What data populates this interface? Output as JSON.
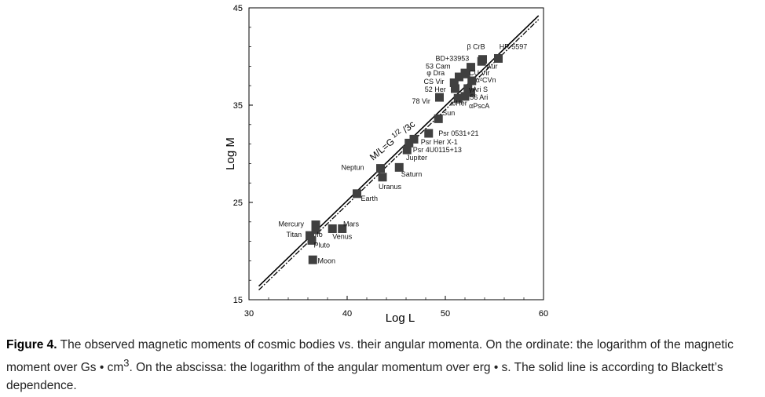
{
  "chart_data": {
    "type": "scatter",
    "xlabel": "Log L",
    "ylabel": "Log M",
    "xlim": [
      30,
      60
    ],
    "ylim": [
      15,
      45
    ],
    "x_ticks": [
      "30",
      "40",
      "50",
      "60"
    ],
    "y_ticks": [
      "15",
      "25",
      "35",
      "45"
    ],
    "grid": false,
    "line_label": "M/L=G^{1/2}/3c",
    "line_label_parts": {
      "base": "M/L=G",
      "sup": "1/2",
      "tail": " /3c"
    },
    "lines": [
      {
        "style": "solid",
        "x": [
          31,
          59.5
        ],
        "y": [
          16.4,
          44.2
        ]
      },
      {
        "style": "dashdot",
        "x": [
          31,
          59.5
        ],
        "y": [
          16.0,
          43.8
        ]
      }
    ],
    "points": [
      {
        "name": "Moon",
        "x": 36.5,
        "y": 19.1
      },
      {
        "name": "Pluto",
        "x": 36.4,
        "y": 21.1
      },
      {
        "name": "Titan",
        "x": 36.2,
        "y": 21.6
      },
      {
        "name": "Io",
        "x": 36.8,
        "y": 22.2
      },
      {
        "name": "Mercury",
        "x": 36.8,
        "y": 22.7
      },
      {
        "name": "Venus",
        "x": 38.5,
        "y": 22.3
      },
      {
        "name": "Mars",
        "x": 39.5,
        "y": 22.3
      },
      {
        "name": "Earth",
        "x": 41.0,
        "y": 25.9
      },
      {
        "name": "Uranus",
        "x": 43.6,
        "y": 27.6
      },
      {
        "name": "Neptun",
        "x": 43.4,
        "y": 28.5
      },
      {
        "name": "Saturn",
        "x": 45.3,
        "y": 28.6
      },
      {
        "name": "Jupiter",
        "x": 46.1,
        "y": 30.4
      },
      {
        "name": "Psr 4U0115+13",
        "x": 46.3,
        "y": 31.1
      },
      {
        "name": "Psr Her X-1",
        "x": 46.8,
        "y": 31.5
      },
      {
        "name": "Psr 0531+21",
        "x": 48.3,
        "y": 32.1
      },
      {
        "name": "Sun",
        "x": 49.3,
        "y": 33.6
      },
      {
        "name": "78 Vir",
        "x": 49.4,
        "y": 35.8
      },
      {
        "name": "ωHer",
        "x": 51.3,
        "y": 35.7
      },
      {
        "name": "αPscA",
        "x": 52.0,
        "y": 35.9
      },
      {
        "name": "56 Ari",
        "x": 52.6,
        "y": 36.3
      },
      {
        "name": "γAri S",
        "x": 52.3,
        "y": 36.7
      },
      {
        "name": "52 Her",
        "x": 51.0,
        "y": 36.7
      },
      {
        "name": "CS Vir",
        "x": 50.9,
        "y": 37.3
      },
      {
        "name": "α²CVn",
        "x": 52.7,
        "y": 37.5
      },
      {
        "name": "CU Vir",
        "x": 52.1,
        "y": 38.2
      },
      {
        "name": "φ Dra",
        "x": 51.4,
        "y": 37.9
      },
      {
        "name": "53 Cam",
        "x": 52.0,
        "y": 38.3
      },
      {
        "name": "53 Aur",
        "x": 52.6,
        "y": 38.9
      },
      {
        "name": "BD+33953",
        "x": 53.7,
        "y": 39.5
      },
      {
        "name": "β CrB",
        "x": 53.8,
        "y": 39.7
      },
      {
        "name": "HR 5597",
        "x": 55.4,
        "y": 39.8
      }
    ]
  },
  "labels": [
    {
      "text": "Moon",
      "x": 37.0,
      "y": 19.0
    },
    {
      "text": "Pluto",
      "x": 36.6,
      "y": 20.6
    },
    {
      "text": "Titan",
      "x": 33.8,
      "y": 21.7
    },
    {
      "text": "Io",
      "x": 36.9,
      "y": 21.7
    },
    {
      "text": "Mercury",
      "x": 33.0,
      "y": 22.8
    },
    {
      "text": "Venus",
      "x": 38.5,
      "y": 21.5
    },
    {
      "text": "Mars",
      "x": 39.6,
      "y": 22.8
    },
    {
      "text": "Earth",
      "x": 41.4,
      "y": 25.4
    },
    {
      "text": "Uranus",
      "x": 43.2,
      "y": 26.6
    },
    {
      "text": "Neptun",
      "x": 39.4,
      "y": 28.6
    },
    {
      "text": "Saturn",
      "x": 45.5,
      "y": 27.9
    },
    {
      "text": "Jupiter",
      "x": 46.0,
      "y": 29.6
    },
    {
      "text": "Psr 4U0115+13",
      "x": 46.7,
      "y": 30.4
    },
    {
      "text": "Psr Her X-1",
      "x": 47.5,
      "y": 31.2
    },
    {
      "text": "Psr 0531+21",
      "x": 49.3,
      "y": 32.1
    },
    {
      "text": "Sun",
      "x": 49.7,
      "y": 34.2
    },
    {
      "text": "78 Vir",
      "x": 46.6,
      "y": 35.4
    },
    {
      "text": "ωHer",
      "x": 50.5,
      "y": 35.2
    },
    {
      "text": "αPscA",
      "x": 52.4,
      "y": 34.9
    },
    {
      "text": "56 Ari",
      "x": 52.5,
      "y": 35.8
    },
    {
      "text": "γAri S",
      "x": 52.4,
      "y": 36.6
    },
    {
      "text": "52 Her",
      "x": 47.9,
      "y": 36.6
    },
    {
      "text": "CS Vir",
      "x": 47.8,
      "y": 37.4
    },
    {
      "text": "α²CVn",
      "x": 53.1,
      "y": 37.6
    },
    {
      "text": "CU Vir",
      "x": 52.4,
      "y": 38.3
    },
    {
      "text": "φ Dra",
      "x": 48.1,
      "y": 38.3
    },
    {
      "text": "53 Cam",
      "x": 48.0,
      "y": 39.0
    },
    {
      "text": "Aur",
      "x": 54.2,
      "y": 39.0
    },
    {
      "text": "BD+33953",
      "x": 49.0,
      "y": 39.8
    },
    {
      "text": "β CrB",
      "x": 52.2,
      "y": 41.0
    },
    {
      "text": "HR 5597",
      "x": 55.5,
      "y": 41.0
    }
  ],
  "caption": {
    "figure_label": "Figure 4.",
    "text_before_sup": " The observed magnetic moments of cosmic bodies vs. their angular momenta. On the ordinate: the logarithm of the magnetic moment over Gs • cm",
    "sup": "3",
    "text_after_sup": ". On the abscissa: the logarithm of the angular momentum over erg • s. The solid line is according to Blackett’s dependence."
  },
  "colors": {
    "marker": "#404040",
    "axis": "#000000",
    "caption_text": "#222222"
  }
}
